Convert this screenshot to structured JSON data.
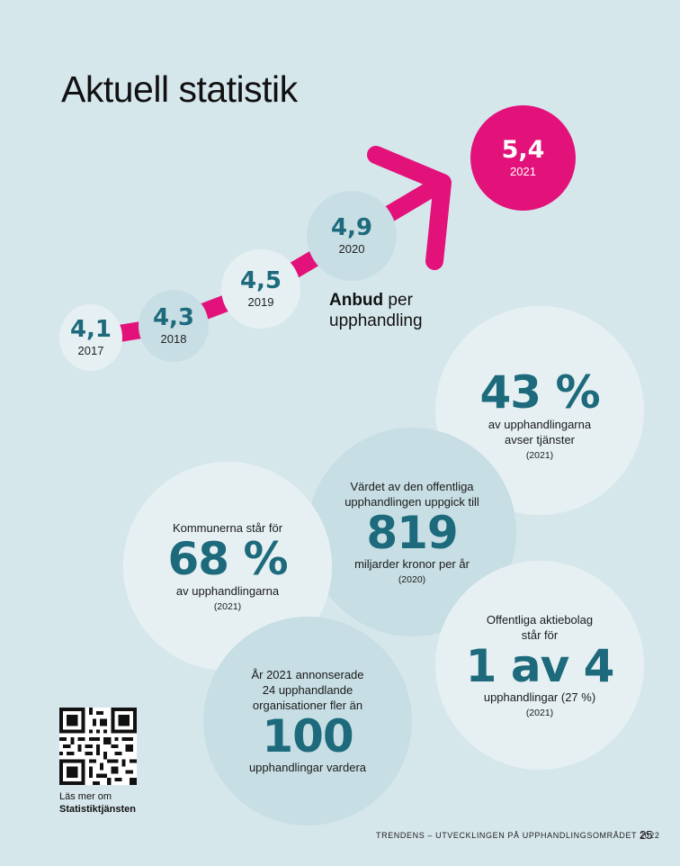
{
  "page": {
    "title": "Aktuell statistik",
    "footer": "TRENDENS – UTVECKLINGEN PÅ UPPHANDLINGSOMRÅDET 2022",
    "page_number": "25"
  },
  "colors": {
    "background": "#d6e7ec",
    "accent_magenta": "#e2127a",
    "teal_text": "#1d6a7c",
    "light_circle": "#e6f0f3",
    "mid_circle": "#c7dee4"
  },
  "bids": {
    "label_bold": "Anbud",
    "label_rest": " per",
    "label_line2": "upphandling",
    "points": [
      {
        "year": "2017",
        "value": "4,1"
      },
      {
        "year": "2018",
        "value": "4,3"
      },
      {
        "year": "2019",
        "value": "4,5"
      },
      {
        "year": "2020",
        "value": "4,9"
      },
      {
        "year": "2021",
        "value": "5,4"
      }
    ]
  },
  "stats": {
    "services": {
      "big": "43 %",
      "line1": "av upphandlingarna",
      "line2": "avser tjänster",
      "year": "(2021)"
    },
    "value": {
      "pre1": "Värdet av den offentliga",
      "pre2": "upphandlingen uppgick till",
      "big": "819",
      "post": "miljarder kronor per år",
      "year": "(2020)"
    },
    "municipal": {
      "pre": "Kommunerna står för",
      "big": "68 %",
      "post": "av upphandlingarna",
      "year": "(2021)"
    },
    "companies": {
      "pre1": "Offentliga aktiebolag",
      "pre2": "står för",
      "big": "1 av 4",
      "post": "upphandlingar (27 %)",
      "year": "(2021)"
    },
    "advertisers": {
      "pre1": "År 2021 annonserade",
      "pre2": "24 upphandlande",
      "pre3": "organisationer fler än",
      "big": "100",
      "post": "upphandlingar vardera"
    }
  },
  "qr": {
    "icon": "qr-code-icon",
    "line1": "Läs mer om",
    "line2": "Statistiktjänsten"
  }
}
